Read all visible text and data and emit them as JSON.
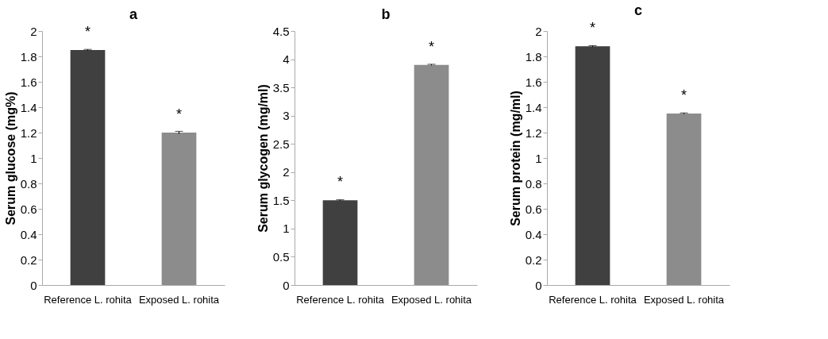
{
  "chart_data": [
    {
      "type": "bar",
      "title": "a",
      "ylabel": "Serum glucose (mg%)",
      "categories": [
        "Reference L. rohita",
        "Exposed L. rohita"
      ],
      "values": [
        1.85,
        1.2
      ],
      "errors": [
        0.005,
        0.01
      ],
      "colors": [
        "#404040",
        "#8c8c8c"
      ],
      "ylim": [
        0,
        2
      ],
      "yticks": [
        0,
        0.2,
        0.4,
        0.6,
        0.8,
        1,
        1.2,
        1.4,
        1.6,
        1.8,
        2
      ],
      "grid": false,
      "annotations": [
        {
          "text": "*",
          "x": "Reference L. rohita",
          "y": 1.85
        },
        {
          "text": "*",
          "x": "Exposed L. rohita",
          "y": 1.2
        }
      ]
    },
    {
      "type": "bar",
      "title": "b",
      "ylabel": "Serum glycogen (mg/ml)",
      "categories": [
        "Reference L. rohita",
        "Exposed L. rohita"
      ],
      "values": [
        1.5,
        3.9
      ],
      "errors": [
        0.01,
        0.01
      ],
      "colors": [
        "#404040",
        "#8c8c8c"
      ],
      "ylim": [
        0,
        4.5
      ],
      "yticks": [
        0,
        0.5,
        1,
        1.5,
        2,
        2.5,
        3,
        3.5,
        4,
        4.5
      ],
      "grid": false,
      "annotations": [
        {
          "text": "*",
          "x": "Reference L. rohita",
          "y": 1.5
        },
        {
          "text": "*",
          "x": "Exposed L. rohita",
          "y": 3.9
        }
      ]
    },
    {
      "type": "bar",
      "title": "c",
      "ylabel": "Serum protein (mg/ml)",
      "categories": [
        "Reference L. rohita",
        "Exposed L. rohita"
      ],
      "values": [
        1.88,
        1.35
      ],
      "errors": [
        0.005,
        0.005
      ],
      "colors": [
        "#404040",
        "#8c8c8c"
      ],
      "ylim": [
        0,
        2
      ],
      "yticks": [
        0,
        0.2,
        0.4,
        0.6,
        0.8,
        1,
        1.2,
        1.4,
        1.6,
        1.8,
        2
      ],
      "grid": false,
      "annotations": [
        {
          "text": "*",
          "x": "Reference L. rohita",
          "y": 1.88
        },
        {
          "text": "*",
          "x": "Exposed L. rohita",
          "y": 1.35
        }
      ]
    }
  ]
}
